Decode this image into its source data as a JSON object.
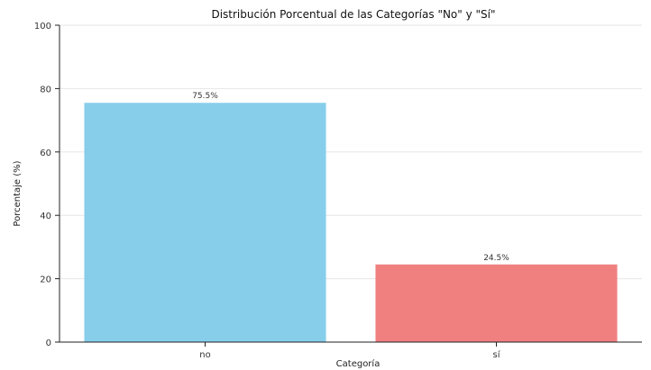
{
  "chart_data": {
    "type": "bar",
    "title": "Distribución Porcentual de las Categorías \"No\" y \"Sí\"",
    "xlabel": "Categoría",
    "ylabel": "Porcentaje (%)",
    "categories": [
      "no",
      "sí"
    ],
    "values": [
      75.5,
      24.5
    ],
    "value_labels": [
      "75.5%",
      "24.5%"
    ],
    "bar_colors": [
      "#87ceeb",
      "#f08080"
    ],
    "ylim": [
      0,
      100
    ],
    "yticks": [
      0,
      20,
      40,
      60,
      80,
      100
    ],
    "grid": "y-major"
  }
}
